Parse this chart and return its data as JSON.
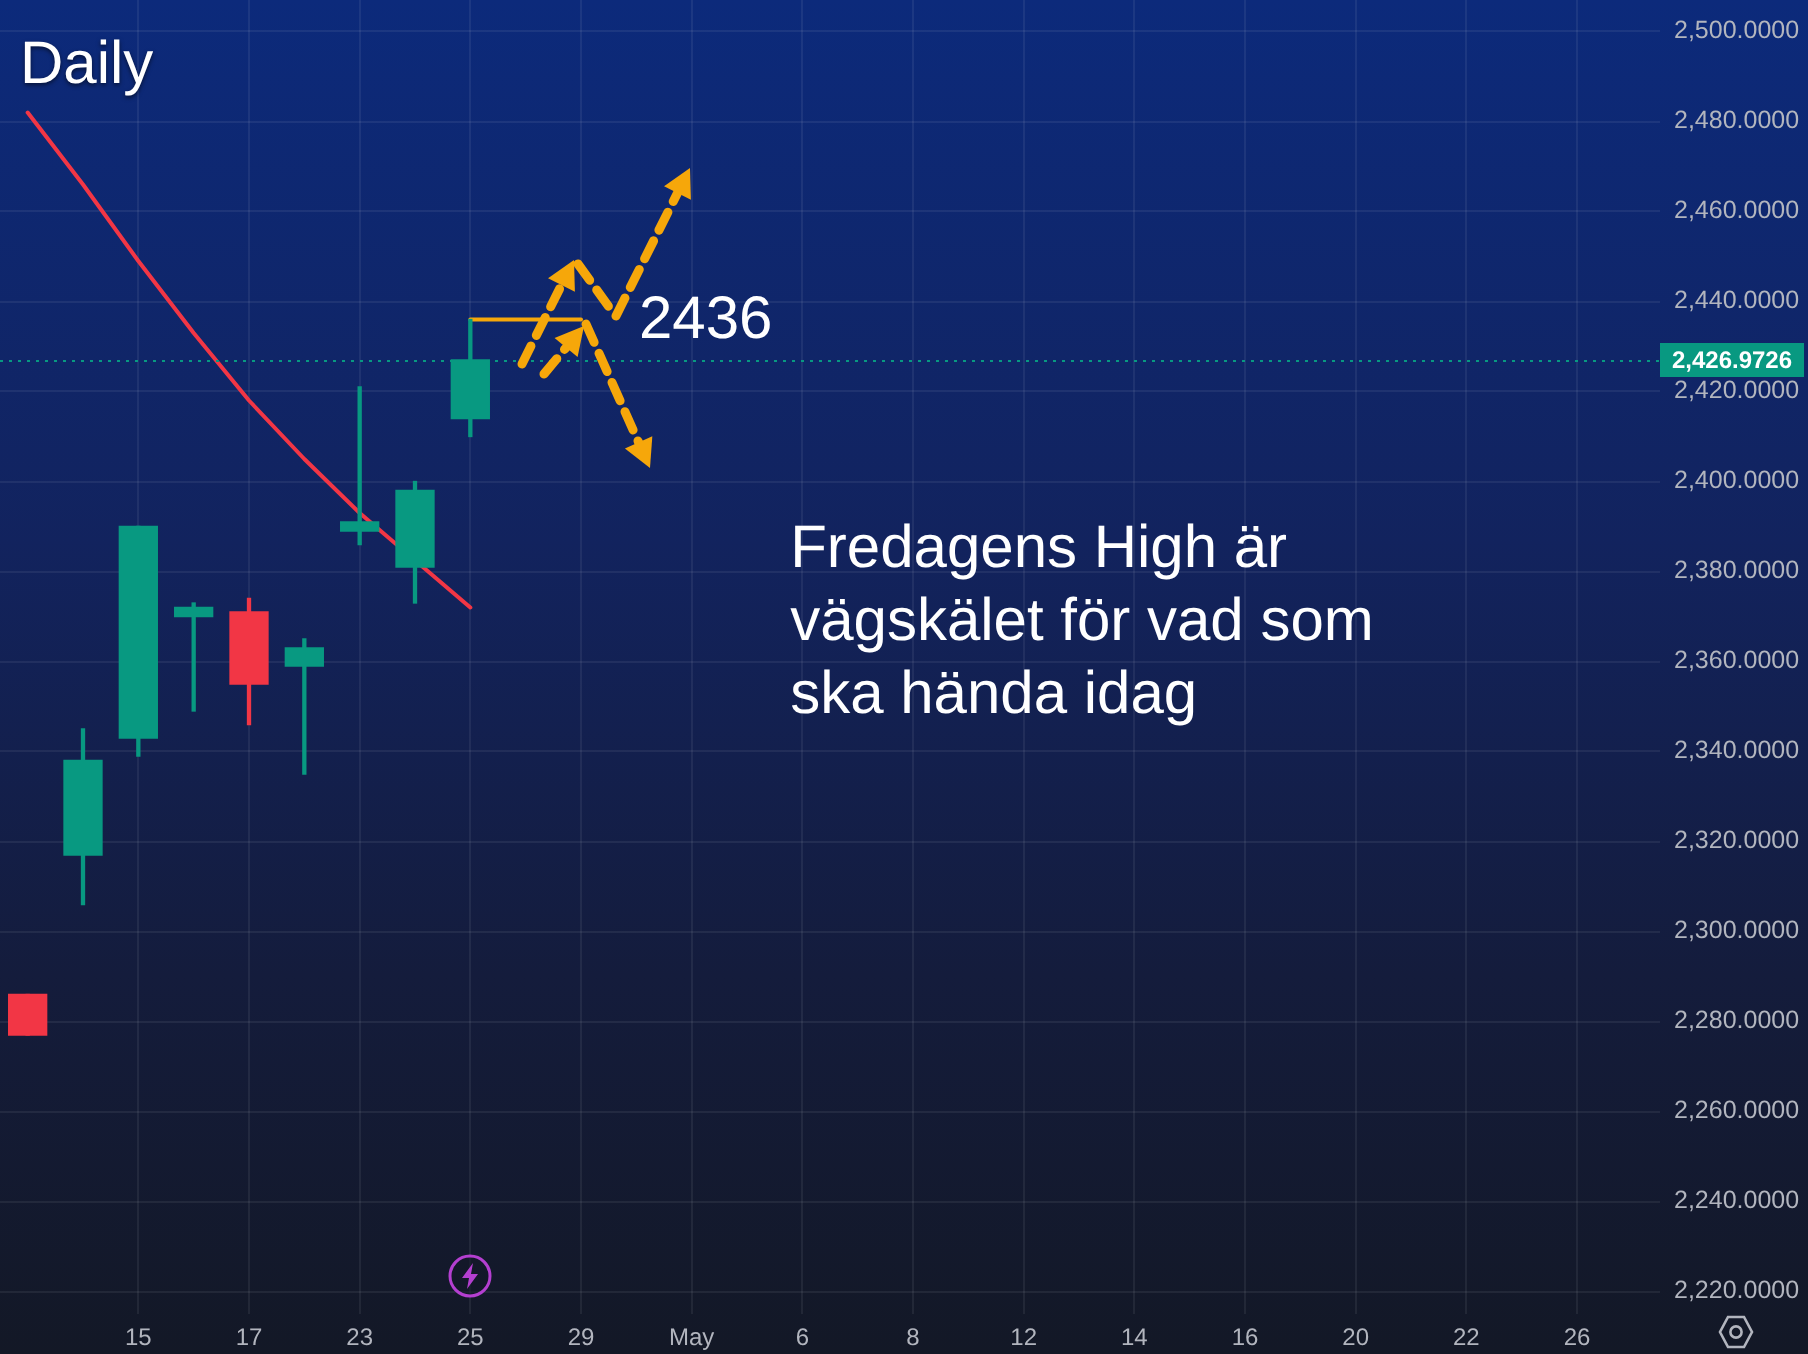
{
  "chart_data": {
    "type": "candlestick",
    "title": "Daily",
    "categories": [
      null,
      null,
      "15",
      null,
      "17",
      null,
      "23",
      null,
      "25",
      null,
      "29",
      null,
      "May",
      null,
      "6",
      null,
      "8",
      null,
      "12",
      null,
      "14",
      null,
      "16",
      null,
      "20",
      null,
      "22",
      null,
      "26",
      null
    ],
    "ohlc": [
      [
        2286,
        2286,
        2277,
        2277
      ],
      [
        2317,
        2345,
        2306,
        2338
      ],
      [
        2343,
        2390,
        2339,
        2390
      ],
      [
        2370,
        2373,
        2349,
        2372
      ],
      [
        2371,
        2374,
        2346,
        2355
      ],
      [
        2359,
        2365,
        2335,
        2363
      ],
      [
        2389,
        2421,
        2386,
        2391
      ],
      [
        2381,
        2400,
        2373,
        2398
      ],
      [
        2414,
        2436,
        2410,
        2427
      ],
      null,
      null,
      null,
      null,
      null,
      null,
      null,
      null,
      null,
      null,
      null,
      null,
      null,
      null,
      null,
      null,
      null,
      null,
      null,
      null,
      null
    ],
    "colors": [
      "#f23645",
      "#089981",
      "#089981",
      "#089981",
      "#f23645",
      "#089981",
      "#089981",
      "#089981",
      "#089981",
      null,
      null,
      null,
      null,
      null,
      null,
      null,
      null,
      null,
      null,
      null,
      null,
      null,
      null,
      null,
      null,
      null,
      null,
      null,
      null,
      null
    ],
    "series": [
      {
        "type": "line",
        "color": "#f23645",
        "values": [
          2482,
          2466,
          2449,
          2433,
          2418,
          2405,
          2393,
          null,
          2372,
          null,
          null,
          null,
          null,
          null,
          null,
          null,
          null,
          null,
          null,
          null,
          null,
          null,
          null,
          null,
          null,
          null,
          null,
          null,
          null,
          null
        ]
      },
      {
        "type": "line",
        "color": "#f6a70a",
        "values": [
          null,
          null,
          null,
          null,
          null,
          null,
          null,
          null,
          2436,
          2436,
          2436,
          null,
          null,
          null,
          null,
          null,
          null,
          null,
          null,
          null,
          null,
          null,
          null,
          null,
          null,
          null,
          null,
          null,
          null,
          null
        ]
      }
    ],
    "ylim": [
      2215,
      2507
    ],
    "yticks": [
      {
        "value": 2220,
        "label": "2,220.0000"
      },
      {
        "value": 2240,
        "label": "2,240.0000"
      },
      {
        "value": 2260,
        "label": "2,260.0000"
      },
      {
        "value": 2280,
        "label": "2,280.0000"
      },
      {
        "value": 2300,
        "label": "2,300.0000"
      },
      {
        "value": 2320,
        "label": "2,320.0000"
      },
      {
        "value": 2340,
        "label": "2,340.0000"
      },
      {
        "value": 2360,
        "label": "2,360.0000"
      },
      {
        "value": 2380,
        "label": "2,380.0000"
      },
      {
        "value": 2400,
        "label": "2,400.0000"
      },
      {
        "value": 2420,
        "label": "2,420.0000"
      },
      {
        "value": 2440,
        "label": "2,440.0000"
      },
      {
        "value": 2460,
        "label": "2,460.0000"
      },
      {
        "value": 2480,
        "label": "2,480.0000"
      },
      {
        "value": 2500,
        "label": "2,500.0000"
      }
    ],
    "grid": true,
    "ref_lines": [
      {
        "axis": "y",
        "value": 2426.9726,
        "label": "2,426.9726",
        "color": "#089981",
        "line_style": "dotted"
      }
    ],
    "annotations": [
      {
        "text": "2436",
        "x": "29",
        "y": 2436
      },
      "Fredagens High är vägskälet för vad som ska hända idag"
    ]
  }
}
